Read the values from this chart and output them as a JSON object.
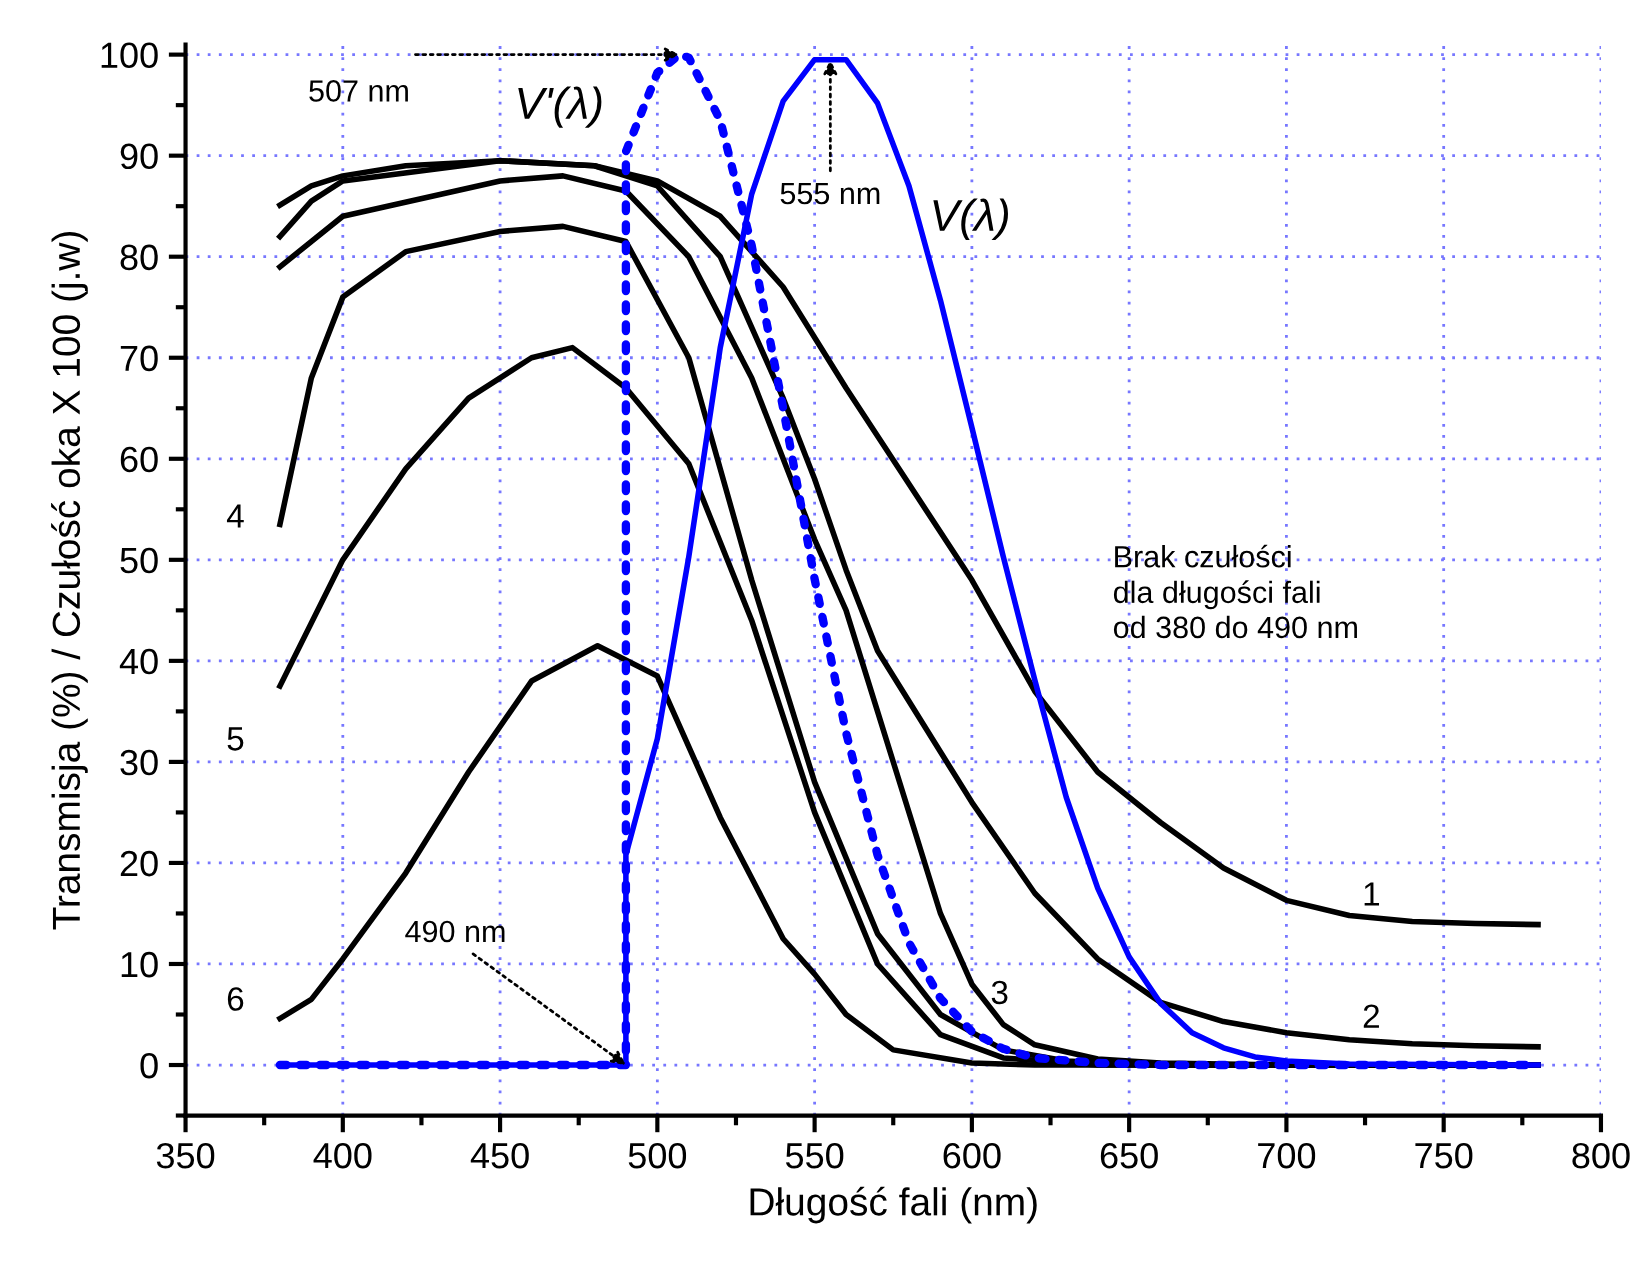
{
  "chart_data": {
    "type": "line",
    "xlabel": "Długość fali (nm)",
    "ylabel": "Transmisja (%) / Czułość oka X 100 (j.w)",
    "xlim": [
      350,
      800
    ],
    "xticks": [
      350,
      400,
      450,
      500,
      550,
      600,
      650,
      700,
      750,
      800
    ],
    "ylim": [
      -5,
      101
    ],
    "yticks": [
      0,
      10,
      20,
      30,
      40,
      50,
      60,
      70,
      80,
      90,
      100
    ],
    "grid": true,
    "legend": false,
    "marker": "none",
    "series": [
      {
        "name": "1",
        "color": "#000000",
        "x": [
          380,
          390,
          400,
          420,
          450,
          480,
          500,
          520,
          540,
          560,
          580,
          600,
          620,
          640,
          660,
          680,
          700,
          720,
          740,
          760,
          780
        ],
        "values": [
          85.1,
          87,
          88,
          89,
          89.5,
          89,
          87.5,
          84,
          77,
          67,
          57.5,
          48,
          37,
          29,
          24,
          19.5,
          16.3,
          14.8,
          14.2,
          14,
          13.9
        ]
      },
      {
        "name": "2",
        "color": "#000000",
        "x": [
          380,
          390,
          400,
          450,
          480,
          500,
          520,
          540,
          550,
          560,
          570,
          580,
          600,
          620,
          640,
          660,
          680,
          700,
          720,
          740,
          760,
          780
        ],
        "values": [
          82,
          85.5,
          87.5,
          89.5,
          89,
          87,
          80,
          66,
          58,
          49,
          41,
          36,
          26,
          17,
          10.5,
          6.2,
          4.3,
          3.2,
          2.5,
          2.1,
          1.9,
          1.8
        ]
      },
      {
        "name": "3",
        "color": "#000000",
        "x": [
          380,
          400,
          450,
          470,
          490,
          510,
          530,
          550,
          560,
          570,
          580,
          590,
          600,
          610,
          620,
          640,
          660,
          700,
          780
        ],
        "values": [
          79,
          84,
          87.5,
          88,
          86.5,
          80,
          68,
          52,
          45,
          35,
          25,
          15,
          8,
          4,
          2,
          0.6,
          0.2,
          0,
          0
        ]
      },
      {
        "name": "4",
        "color": "#000000",
        "x": [
          380,
          390,
          400,
          420,
          450,
          470,
          490,
          510,
          530,
          550,
          570,
          590,
          610,
          630,
          660,
          780
        ],
        "values": [
          53.5,
          68,
          76,
          80.5,
          82.5,
          83,
          81.5,
          70,
          48,
          28,
          13,
          5,
          1.5,
          0.4,
          0,
          0
        ]
      },
      {
        "name": "5",
        "color": "#000000",
        "x": [
          380,
          400,
          420,
          440,
          460,
          473,
          490,
          510,
          530,
          550,
          570,
          590,
          610,
          640,
          780
        ],
        "values": [
          37.5,
          50,
          59,
          66,
          70,
          71,
          67,
          59.5,
          44,
          25,
          10,
          3,
          0.7,
          0,
          0
        ]
      },
      {
        "name": "6",
        "color": "#000000",
        "x": [
          380,
          390,
          400,
          420,
          440,
          460,
          481,
          500,
          520,
          540,
          550,
          560,
          575,
          600,
          620,
          780
        ],
        "values": [
          4.6,
          6.5,
          10.5,
          19,
          29,
          38,
          41.5,
          38.5,
          24.5,
          12.5,
          9,
          5,
          1.5,
          0.2,
          0,
          0
        ]
      },
      {
        "name": "V'(λ)",
        "color": "#0000ff",
        "line_style": "dotted",
        "x": [
          380,
          490,
          490,
          500,
          507,
          510,
          520,
          530,
          540,
          550,
          560,
          570,
          580,
          590,
          600,
          610,
          620,
          640,
          660,
          780
        ],
        "values": [
          0,
          0,
          90.4,
          98.2,
          100,
          99.7,
          93.5,
          81.1,
          65,
          48.1,
          32.9,
          20.8,
          12.1,
          6.6,
          3.3,
          1.6,
          0.7,
          0.2,
          0,
          0
        ]
      },
      {
        "name": "V(λ)",
        "color": "#0000ff",
        "x": [
          380,
          490,
          490,
          500,
          510,
          520,
          530,
          540,
          550,
          560,
          570,
          580,
          590,
          600,
          610,
          620,
          630,
          640,
          650,
          660,
          670,
          680,
          690,
          700,
          720,
          780
        ],
        "values": [
          0,
          0,
          20.8,
          32.3,
          50.3,
          71,
          86.2,
          95.4,
          99.5,
          99.5,
          95.2,
          87,
          75.7,
          63.1,
          50.3,
          38.1,
          26.5,
          17.5,
          10.7,
          6.1,
          3.2,
          1.7,
          0.8,
          0.4,
          0.1,
          0
        ]
      }
    ],
    "annotations": [
      {
        "text": "507 nm",
        "x": 507,
        "y": 100
      },
      {
        "text": "555 nm",
        "x": 555,
        "y": 99.5
      },
      {
        "text": "490 nm",
        "x": 490,
        "y": 0
      },
      "Brak czułości\ndla długości fali\nod 380 do 490 nm"
    ]
  }
}
